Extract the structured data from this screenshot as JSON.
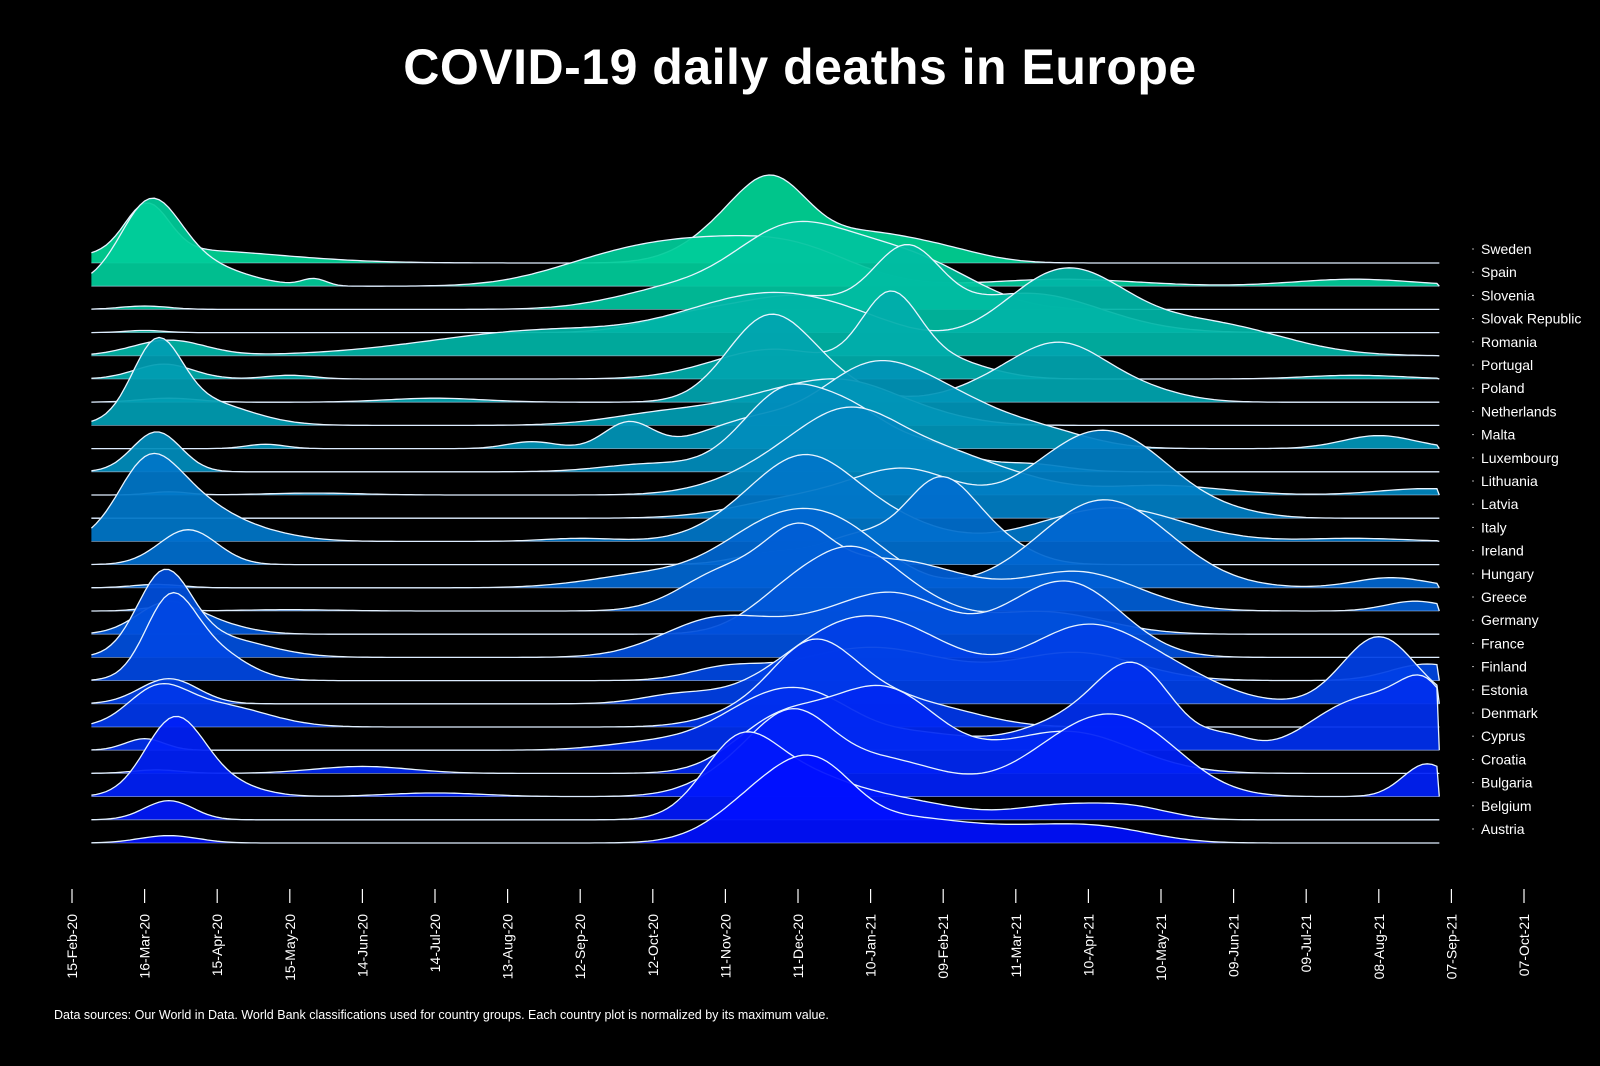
{
  "chart_data": {
    "type": "ridgeline",
    "title": "COVID-19 daily deaths in Europe",
    "footnote": "Data sources: Our World in Data. World Bank classifications used for country groups. Each country plot is normalized by its maximum value.",
    "x_tick_labels": [
      "15-Feb-20",
      "16-Mar-20",
      "15-Apr-20",
      "15-May-20",
      "14-Jun-20",
      "14-Jul-20",
      "13-Aug-20",
      "12-Sep-20",
      "12-Oct-20",
      "11-Nov-20",
      "11-Dec-20",
      "10-Jan-21",
      "09-Feb-21",
      "11-Mar-21",
      "10-Apr-21",
      "10-May-21",
      "09-Jun-21",
      "09-Jul-21",
      "08-Aug-21",
      "07-Sep-21",
      "07-Oct-21"
    ],
    "x_tick_days": [
      0,
      30,
      60,
      90,
      120,
      150,
      180,
      210,
      240,
      270,
      300,
      330,
      360,
      390,
      420,
      450,
      480,
      510,
      540,
      570,
      600
    ],
    "x_range_days": [
      0,
      600
    ],
    "data_end_day": 565,
    "normalization": "each country normalized by its maximum value (peak = 1)",
    "color_gradient": {
      "top": "#00d496",
      "bottom": "#0010ff"
    },
    "countries": [
      {
        "name": "Sweden",
        "peaks": [
          [
            31,
            0.92,
            9
          ],
          [
            45,
            0.25,
            40
          ],
          [
            275,
            0.75,
            18
          ],
          [
            291,
            1.0,
            14
          ],
          [
            325,
            0.55,
            22
          ],
          [
            360,
            0.2,
            18
          ]
        ]
      },
      {
        "name": "Spain",
        "peaks": [
          [
            32,
            1.0,
            12
          ],
          [
            48,
            0.35,
            20
          ],
          [
            100,
            0.1,
            5
          ],
          [
            215,
            0.2,
            25
          ],
          [
            255,
            0.55,
            30
          ],
          [
            300,
            0.45,
            25
          ],
          [
            410,
            0.1,
            30
          ],
          [
            530,
            0.1,
            25
          ]
        ]
      },
      {
        "name": "Slovenia",
        "peaks": [
          [
            30,
            0.05,
            10
          ],
          [
            250,
            0.3,
            25
          ],
          [
            295,
            1.0,
            22
          ],
          [
            335,
            0.75,
            25
          ],
          [
            365,
            0.2,
            20
          ]
        ]
      },
      {
        "name": "Slovak Republic",
        "peaks": [
          [
            30,
            0.03,
            8
          ],
          [
            255,
            0.2,
            20
          ],
          [
            300,
            0.5,
            25
          ],
          [
            345,
            1.0,
            14
          ],
          [
            395,
            0.55,
            30
          ]
        ]
      },
      {
        "name": "Romania",
        "peaks": [
          [
            40,
            0.15,
            15
          ],
          [
            200,
            0.25,
            50
          ],
          [
            280,
            0.4,
            30
          ],
          [
            320,
            0.3,
            30
          ],
          [
            410,
            0.8,
            25
          ],
          [
            470,
            0.3,
            30
          ]
        ]
      },
      {
        "name": "Portugal",
        "peaks": [
          [
            38,
            0.2,
            12
          ],
          [
            90,
            0.05,
            10
          ],
          [
            290,
            0.4,
            25
          ],
          [
            338,
            1.0,
            12
          ],
          [
            360,
            0.25,
            18
          ],
          [
            530,
            0.05,
            20
          ]
        ]
      },
      {
        "name": "Poland",
        "peaks": [
          [
            40,
            0.05,
            12
          ],
          [
            150,
            0.05,
            20
          ],
          [
            285,
            0.7,
            16
          ],
          [
            300,
            0.5,
            20
          ],
          [
            385,
            0.25,
            20
          ],
          [
            410,
            0.6,
            18
          ],
          [
            440,
            0.15,
            18
          ]
        ]
      },
      {
        "name": "Netherlands",
        "peaks": [
          [
            35,
            1.0,
            10
          ],
          [
            52,
            0.35,
            20
          ],
          [
            250,
            0.2,
            25
          ],
          [
            290,
            0.3,
            20
          ],
          [
            320,
            0.5,
            20
          ],
          [
            350,
            0.15,
            20
          ]
        ]
      },
      {
        "name": "Malta",
        "peaks": [
          [
            80,
            0.05,
            8
          ],
          [
            190,
            0.08,
            10
          ],
          [
            230,
            0.3,
            10
          ],
          [
            280,
            0.3,
            20
          ],
          [
            330,
            0.9,
            22
          ],
          [
            365,
            0.4,
            20
          ],
          [
            400,
            0.2,
            20
          ],
          [
            540,
            0.15,
            15
          ]
        ]
      },
      {
        "name": "Luxembourg",
        "peaks": [
          [
            35,
            0.5,
            10
          ],
          [
            240,
            0.1,
            20
          ],
          [
            295,
            1.0,
            18
          ],
          [
            325,
            0.55,
            15
          ],
          [
            355,
            0.3,
            15
          ],
          [
            395,
            0.1,
            15
          ]
        ]
      },
      {
        "name": "Lithuania",
        "peaks": [
          [
            40,
            0.05,
            8
          ],
          [
            100,
            0.03,
            20
          ],
          [
            300,
            0.6,
            25
          ],
          [
            325,
            0.9,
            20
          ],
          [
            360,
            0.5,
            20
          ],
          [
            390,
            0.2,
            20
          ],
          [
            450,
            0.15,
            25
          ],
          [
            560,
            0.1,
            20
          ]
        ]
      },
      {
        "name": "Latvia",
        "peaks": [
          [
            300,
            0.25,
            25
          ],
          [
            345,
            0.6,
            22
          ],
          [
            420,
            1.0,
            25
          ],
          [
            445,
            0.3,
            20
          ],
          [
            480,
            0.05,
            15
          ]
        ]
      },
      {
        "name": "Italy",
        "peaks": [
          [
            30,
            1.0,
            12
          ],
          [
            45,
            0.55,
            15
          ],
          [
            65,
            0.25,
            20
          ],
          [
            210,
            0.05,
            15
          ],
          [
            285,
            0.55,
            20
          ],
          [
            305,
            0.85,
            18
          ],
          [
            330,
            0.45,
            22
          ],
          [
            430,
            0.55,
            28
          ],
          [
            530,
            0.05,
            20
          ]
        ]
      },
      {
        "name": "Ireland",
        "peaks": [
          [
            48,
            0.45,
            12
          ],
          [
            290,
            0.15,
            15
          ],
          [
            325,
            0.35,
            15
          ],
          [
            358,
            1.0,
            14
          ],
          [
            380,
            0.3,
            15
          ]
        ]
      },
      {
        "name": "Hungary",
        "peaks": [
          [
            35,
            0.05,
            10
          ],
          [
            240,
            0.2,
            25
          ],
          [
            290,
            0.85,
            22
          ],
          [
            320,
            0.65,
            20
          ],
          [
            420,
            0.9,
            25
          ],
          [
            440,
            0.5,
            25
          ],
          [
            545,
            0.15,
            15
          ]
        ]
      },
      {
        "name": "Greece",
        "peaks": [
          [
            35,
            0.05,
            8
          ],
          [
            90,
            0.02,
            20
          ],
          [
            270,
            0.6,
            18
          ],
          [
            300,
            1.0,
            14
          ],
          [
            330,
            0.6,
            20
          ],
          [
            360,
            0.4,
            20
          ],
          [
            415,
            0.6,
            25
          ],
          [
            555,
            0.15,
            12
          ]
        ]
      },
      {
        "name": "Germany",
        "peaks": [
          [
            38,
            0.45,
            12
          ],
          [
            55,
            0.2,
            15
          ],
          [
            300,
            0.8,
            18
          ],
          [
            325,
            1.0,
            16
          ],
          [
            350,
            0.5,
            18
          ],
          [
            395,
            0.3,
            20
          ],
          [
            420,
            0.15,
            20
          ]
        ]
      },
      {
        "name": "France",
        "peaks": [
          [
            38,
            1.0,
            11
          ],
          [
            60,
            0.25,
            20
          ],
          [
            265,
            0.45,
            22
          ],
          [
            320,
            0.5,
            28
          ],
          [
            345,
            0.45,
            20
          ],
          [
            400,
            0.6,
            22
          ],
          [
            420,
            0.5,
            20
          ]
        ]
      },
      {
        "name": "Finland",
        "peaks": [
          [
            40,
            0.6,
            10
          ],
          [
            55,
            0.3,
            15
          ],
          [
            270,
            0.1,
            15
          ],
          [
            330,
            0.3,
            30
          ],
          [
            415,
            0.25,
            25
          ],
          [
            560,
            0.15,
            15
          ]
        ]
      },
      {
        "name": "Estonia",
        "peaks": [
          [
            40,
            0.15,
            12
          ],
          [
            250,
            0.05,
            15
          ],
          [
            310,
            0.2,
            25
          ],
          [
            340,
            0.4,
            30
          ],
          [
            420,
            0.45,
            25
          ],
          [
            460,
            0.1,
            20
          ],
          [
            540,
            0.4,
            15
          ]
        ]
      },
      {
        "name": "Denmark",
        "peaks": [
          [
            35,
            0.45,
            12
          ],
          [
            60,
            0.3,
            20
          ],
          [
            280,
            0.2,
            18
          ],
          [
            305,
            0.85,
            16
          ],
          [
            325,
            0.45,
            20
          ],
          [
            360,
            0.2,
            20
          ]
        ]
      },
      {
        "name": "Cyprus",
        "peaks": [
          [
            30,
            0.15,
            8
          ],
          [
            240,
            0.1,
            20
          ],
          [
            285,
            0.55,
            20
          ],
          [
            310,
            0.45,
            18
          ],
          [
            350,
            0.2,
            20
          ],
          [
            420,
            0.45,
            25
          ],
          [
            440,
            0.8,
            15
          ],
          [
            478,
            0.15,
            10
          ],
          [
            520,
            0.3,
            15
          ],
          [
            545,
            0.6,
            18
          ],
          [
            560,
            0.5,
            10
          ]
        ]
      },
      {
        "name": "Croatia",
        "peaks": [
          [
            35,
            0.05,
            10
          ],
          [
            120,
            0.1,
            20
          ],
          [
            290,
            0.6,
            18
          ],
          [
            330,
            0.85,
            25
          ],
          [
            340,
            0.4,
            20
          ],
          [
            400,
            0.3,
            25
          ],
          [
            420,
            0.35,
            25
          ]
        ]
      },
      {
        "name": "Bulgaria",
        "peaks": [
          [
            42,
            1.0,
            12
          ],
          [
            60,
            0.2,
            15
          ],
          [
            150,
            0.05,
            20
          ],
          [
            285,
            0.55,
            20
          ],
          [
            300,
            0.6,
            15
          ],
          [
            335,
            0.5,
            25
          ],
          [
            420,
            0.9,
            25
          ],
          [
            445,
            0.4,
            20
          ],
          [
            560,
            0.45,
            10
          ]
        ]
      },
      {
        "name": "Belgium",
        "peaks": [
          [
            40,
            0.2,
            10
          ],
          [
            275,
            0.7,
            15
          ],
          [
            300,
            0.4,
            20
          ],
          [
            340,
            0.2,
            25
          ],
          [
            410,
            0.15,
            20
          ],
          [
            440,
            0.1,
            15
          ]
        ]
      },
      {
        "name": "Austria",
        "peaks": [
          [
            40,
            0.08,
            12
          ],
          [
            290,
            0.6,
            20
          ],
          [
            310,
            0.45,
            15
          ],
          [
            345,
            0.25,
            25
          ],
          [
            400,
            0.15,
            25
          ],
          [
            430,
            0.1,
            20
          ]
        ]
      }
    ]
  }
}
